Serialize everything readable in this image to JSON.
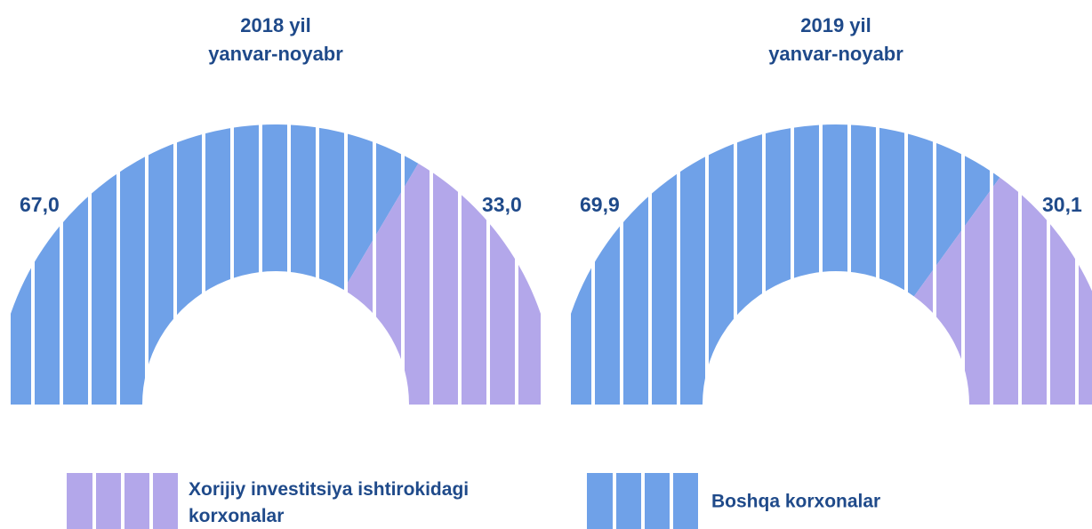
{
  "chart_data": [
    {
      "type": "pie",
      "title": "2018 yil",
      "subtitle": "yanvar-noyabr",
      "values": [
        67.0,
        33.0
      ],
      "value_labels": [
        "67,0",
        "33,0"
      ]
    },
    {
      "type": "pie",
      "title": "2019 yil",
      "subtitle": "yanvar-noyabr",
      "values": [
        69.9,
        30.1
      ],
      "value_labels": [
        "69,9",
        "30,1"
      ]
    }
  ],
  "legend": {
    "categories": [
      "Boshqa korxonalar",
      "Xorijiy investitsiya ishtirokidagi korxonalar"
    ],
    "colors": [
      "#6fa1e8",
      "#b3a7ea"
    ]
  }
}
